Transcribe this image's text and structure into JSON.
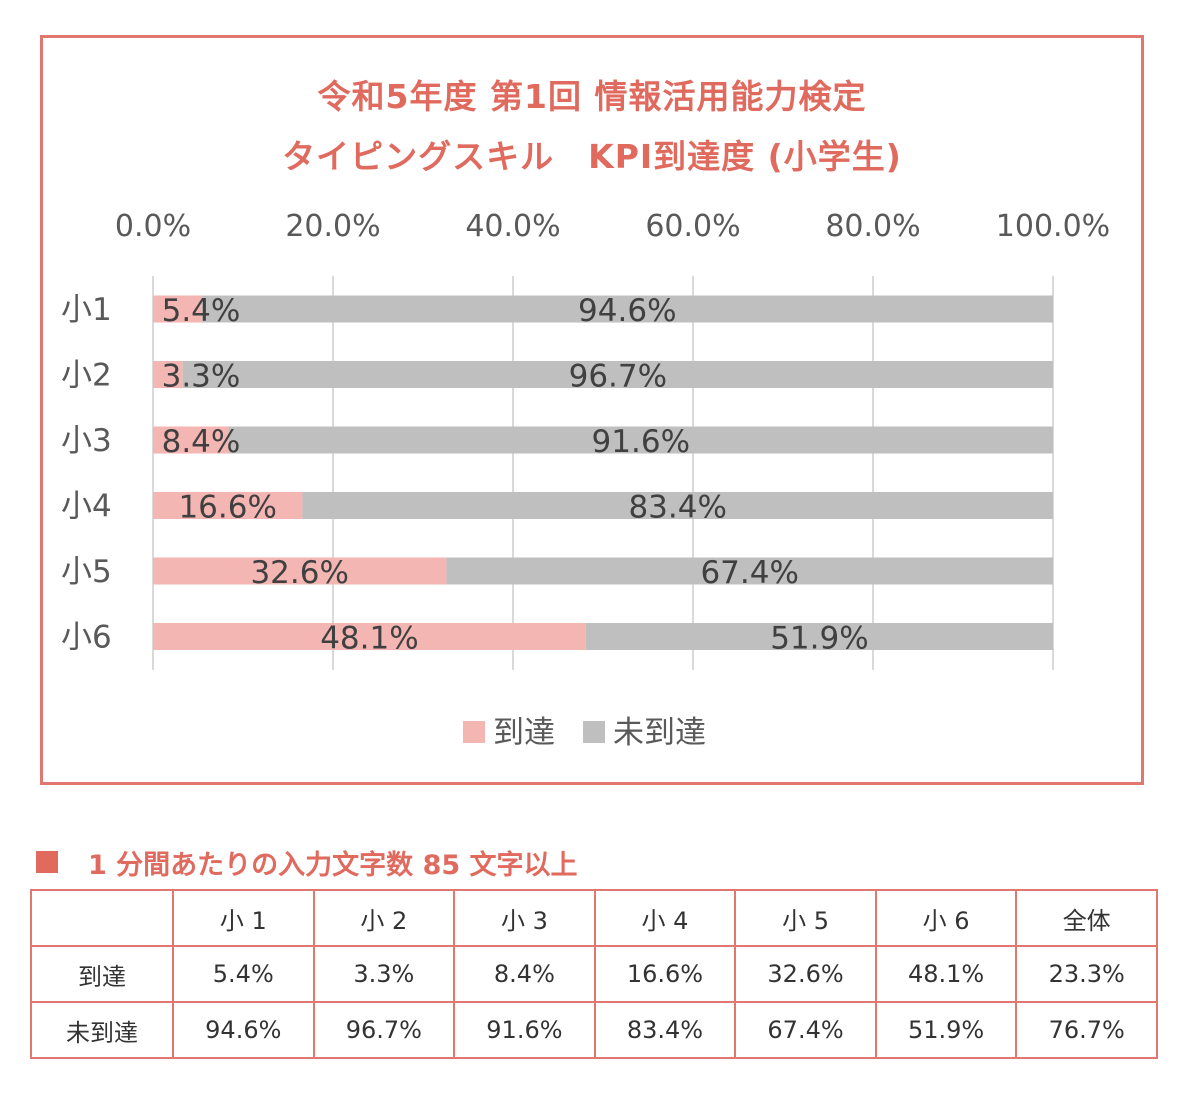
{
  "chart_data": {
    "type": "bar",
    "orientation": "horizontal",
    "stacked": true,
    "title_line1": "令和5年度 第1回 情報活用能力検定",
    "title_line2": "タイピングスキル　KPI到達度 (小学生)",
    "categories": [
      "小1",
      "小2",
      "小3",
      "小4",
      "小5",
      "小6"
    ],
    "series": [
      {
        "name": "到達",
        "color": "#f4b6b2",
        "values": [
          5.4,
          3.3,
          8.4,
          16.6,
          32.6,
          48.1
        ],
        "labels": [
          "5.4%",
          "3.3%",
          "8.4%",
          "16.6%",
          "32.6%",
          "48.1%"
        ]
      },
      {
        "name": "未到達",
        "color": "#bfbfbf",
        "values": [
          94.6,
          96.7,
          91.6,
          83.4,
          67.4,
          51.9
        ],
        "labels": [
          "94.6%",
          "96.7%",
          "91.6%",
          "83.4%",
          "67.4%",
          "51.9%"
        ]
      }
    ],
    "xlim": [
      0,
      100
    ],
    "xticks": [
      0,
      20,
      40,
      60,
      80,
      100
    ],
    "xtick_labels": [
      "0.0%",
      "20.0%",
      "40.0%",
      "60.0%",
      "80.0%",
      "100.0%"
    ],
    "grid": true,
    "legend": "bottom"
  },
  "table": {
    "heading": "1 分間あたりの入力文字数 85 文字以上",
    "columns": [
      "",
      "小 1",
      "小 2",
      "小 3",
      "小 4",
      "小 5",
      "小 6",
      "全体"
    ],
    "rows": [
      {
        "label": "到達",
        "values": [
          "5.4%",
          "3.3%",
          "8.4%",
          "16.6%",
          "32.6%",
          "48.1%",
          "23.3%"
        ]
      },
      {
        "label": "未到達",
        "values": [
          "94.6%",
          "96.7%",
          "91.6%",
          "83.4%",
          "67.4%",
          "51.9%",
          "76.7%"
        ]
      }
    ]
  },
  "colors": {
    "accent": "#e06a5e",
    "border": "#e07870",
    "reached": "#f4b6b2",
    "not_reached": "#bfbfbf"
  }
}
